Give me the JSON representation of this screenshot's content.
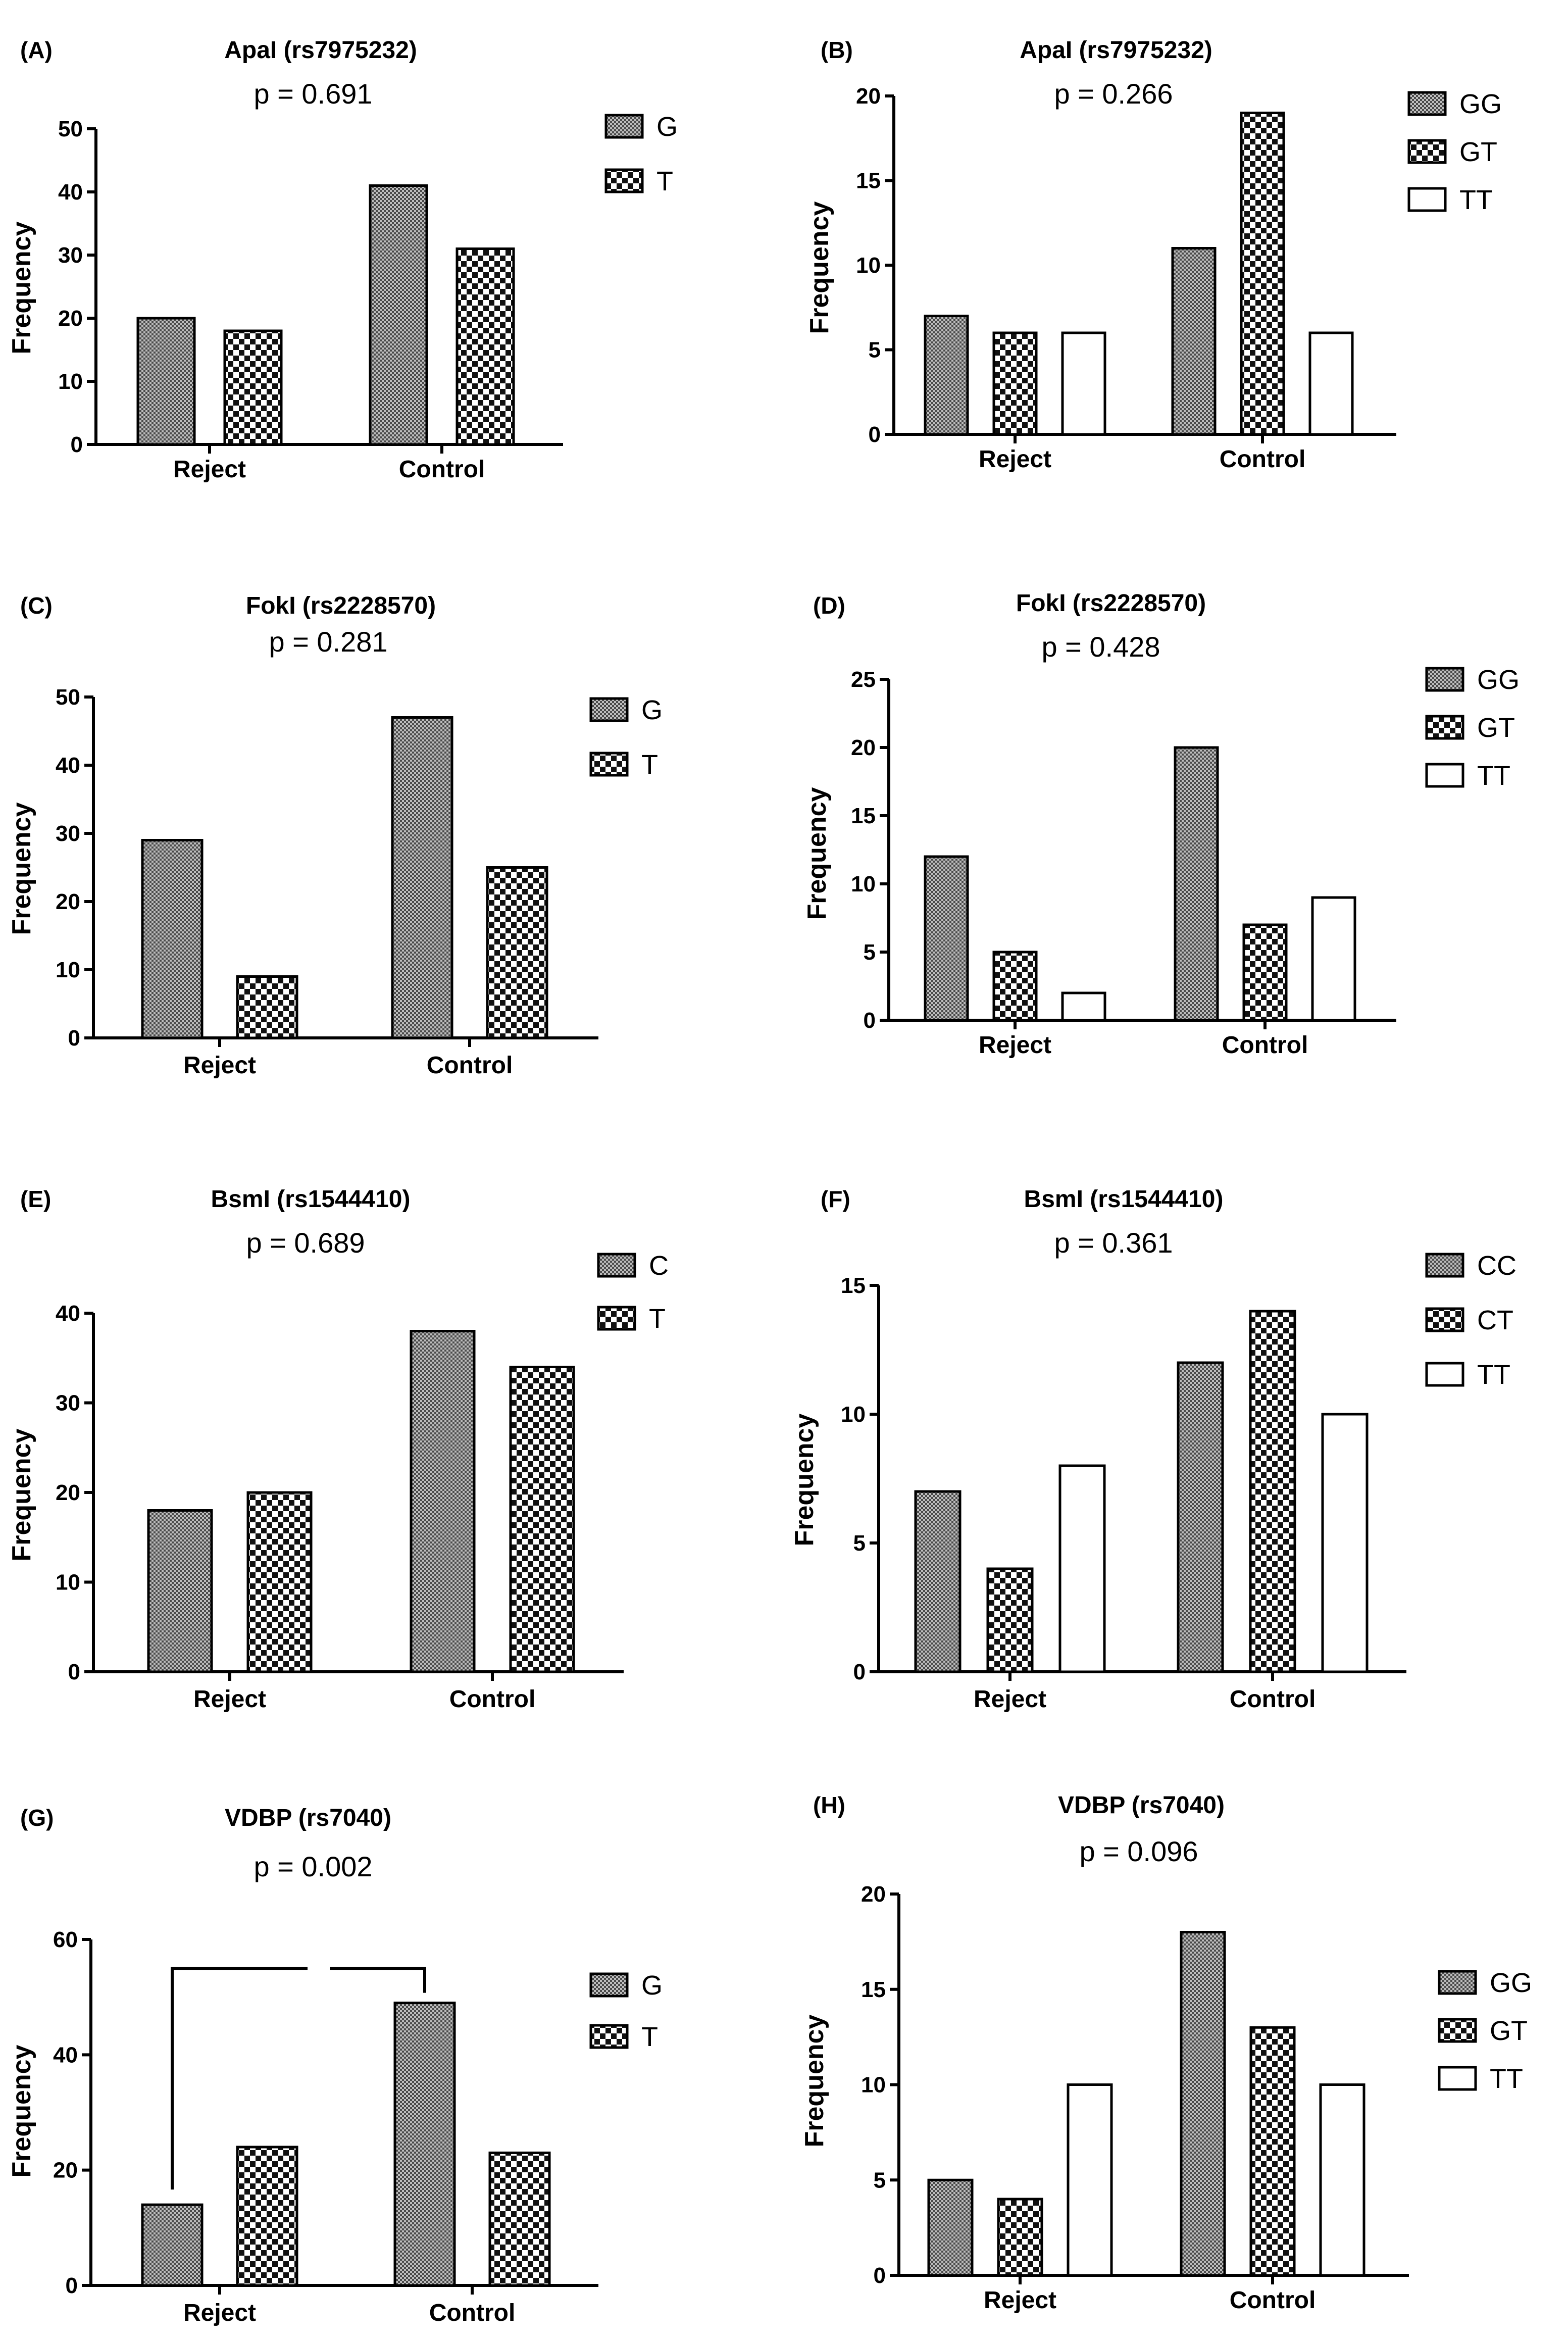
{
  "figure": {
    "colors": {
      "ink": "#000000",
      "paper": "#ffffff",
      "hatch_fill": "#9a9a9a"
    }
  },
  "chart_data": [
    {
      "panel": "(A)",
      "title": "ApaI (rs7975232)",
      "p_value": "p = 0.691",
      "type": "bar",
      "ylabel": "Frequency",
      "ylim": [
        0,
        50
      ],
      "yticks": [
        0,
        10,
        20,
        30,
        40,
        50
      ],
      "categories": [
        "Reject",
        "Control"
      ],
      "series": [
        {
          "name": "G",
          "pattern": "fine",
          "values": [
            20,
            41
          ]
        },
        {
          "name": "T",
          "pattern": "checker",
          "values": [
            18,
            31
          ]
        }
      ]
    },
    {
      "panel": "(B)",
      "title": "ApaI (rs7975232)",
      "p_value": "p = 0.266",
      "type": "bar",
      "ylabel": "Frequency",
      "ylim": [
        0,
        20
      ],
      "yticks": [
        0,
        5,
        10,
        15,
        20
      ],
      "categories": [
        "Reject",
        "Control"
      ],
      "series": [
        {
          "name": "GG",
          "pattern": "fine",
          "values": [
            7,
            11
          ]
        },
        {
          "name": "GT",
          "pattern": "checker",
          "values": [
            6,
            19
          ]
        },
        {
          "name": "TT",
          "pattern": "empty",
          "values": [
            6,
            6
          ]
        }
      ]
    },
    {
      "panel": "(C)",
      "title": "FokI (rs2228570)",
      "p_value": "p = 0.281",
      "type": "bar",
      "ylabel": "Frequency",
      "ylim": [
        0,
        50
      ],
      "yticks": [
        0,
        10,
        20,
        30,
        40,
        50
      ],
      "categories": [
        "Reject",
        "Control"
      ],
      "series": [
        {
          "name": "G",
          "pattern": "fine",
          "values": [
            29,
            47
          ]
        },
        {
          "name": "T",
          "pattern": "checker",
          "values": [
            9,
            25
          ]
        }
      ]
    },
    {
      "panel": "(D)",
      "title": "FokI (rs2228570)",
      "p_value": "p = 0.428",
      "type": "bar",
      "ylabel": "Frequency",
      "ylim": [
        0,
        25
      ],
      "yticks": [
        0,
        5,
        10,
        15,
        20,
        25
      ],
      "categories": [
        "Reject",
        "Control"
      ],
      "series": [
        {
          "name": "GG",
          "pattern": "fine",
          "values": [
            12,
            20
          ]
        },
        {
          "name": "GT",
          "pattern": "checker",
          "values": [
            5,
            7
          ]
        },
        {
          "name": "TT",
          "pattern": "empty",
          "values": [
            2,
            9
          ]
        }
      ]
    },
    {
      "panel": "(E)",
      "title": "BsmI (rs1544410)",
      "p_value": "p = 0.689",
      "type": "bar",
      "ylabel": "Frequency",
      "ylim": [
        0,
        40
      ],
      "yticks": [
        0,
        10,
        20,
        30,
        40
      ],
      "categories": [
        "Reject",
        "Control"
      ],
      "series": [
        {
          "name": "C",
          "pattern": "fine",
          "values": [
            18,
            38
          ]
        },
        {
          "name": "T",
          "pattern": "checker",
          "values": [
            20,
            34
          ]
        }
      ]
    },
    {
      "panel": "(F)",
      "title": "BsmI (rs1544410)",
      "p_value": "p = 0.361",
      "type": "bar",
      "ylabel": "Frequency",
      "ylim": [
        0,
        15
      ],
      "yticks": [
        0,
        5,
        10,
        15
      ],
      "categories": [
        "Reject",
        "Control"
      ],
      "series": [
        {
          "name": "CC",
          "pattern": "fine",
          "values": [
            7,
            12
          ]
        },
        {
          "name": "CT",
          "pattern": "checker",
          "values": [
            4,
            14
          ]
        },
        {
          "name": "TT",
          "pattern": "empty",
          "values": [
            8,
            10
          ]
        }
      ]
    },
    {
      "panel": "(G)",
      "title": "VDBP (rs7040)",
      "p_value": "p = 0.002",
      "type": "bar",
      "ylabel": "Frequency",
      "ylim": [
        0,
        60
      ],
      "yticks": [
        0,
        20,
        40,
        60
      ],
      "categories": [
        "Reject",
        "Control"
      ],
      "series": [
        {
          "name": "G",
          "pattern": "fine",
          "values": [
            14,
            49
          ]
        },
        {
          "name": "T",
          "pattern": "checker",
          "values": [
            24,
            23
          ]
        }
      ],
      "significance_bracket": {
        "from": "Reject G",
        "to": "Control G",
        "level": 55
      }
    },
    {
      "panel": "(H)",
      "title": "VDBP (rs7040)",
      "p_value": "p = 0.096",
      "type": "bar",
      "ylabel": "Frequency",
      "ylim": [
        0,
        20
      ],
      "yticks": [
        0,
        5,
        10,
        15,
        20
      ],
      "categories": [
        "Reject",
        "Control"
      ],
      "series": [
        {
          "name": "GG",
          "pattern": "fine",
          "values": [
            5,
            18
          ]
        },
        {
          "name": "GT",
          "pattern": "checker",
          "values": [
            4,
            13
          ]
        },
        {
          "name": "TT",
          "pattern": "empty",
          "values": [
            10,
            10
          ]
        }
      ]
    }
  ]
}
